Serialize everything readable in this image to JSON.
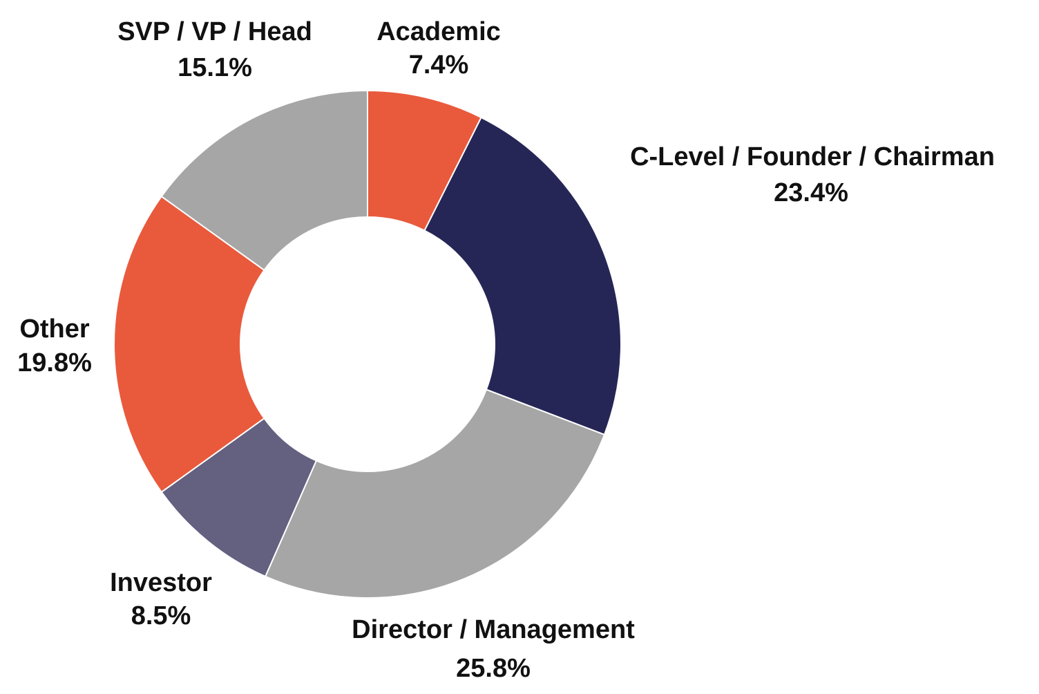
{
  "chart_data": {
    "type": "pie",
    "variant": "donut",
    "title": "",
    "slices": [
      {
        "label": "Academic",
        "value": 7.4,
        "value_label": "7.4%",
        "color": "#E95A3C"
      },
      {
        "label": "C-Level / Founder / Chairman",
        "value": 23.4,
        "value_label": "23.4%",
        "color": "#262656"
      },
      {
        "label": "Director / Management",
        "value": 25.8,
        "value_label": "25.8%",
        "color": "#A6A6A6"
      },
      {
        "label": "Investor",
        "value": 8.5,
        "value_label": "8.5%",
        "color": "#646080"
      },
      {
        "label": "Other",
        "value": 19.8,
        "value_label": "19.8%",
        "color": "#E95A3C"
      },
      {
        "label": "SVP / VP / Head",
        "value": 15.1,
        "value_label": "15.1%",
        "color": "#A6A6A6"
      }
    ],
    "start_angle": "top",
    "direction": "clockwise",
    "legend": "none"
  }
}
